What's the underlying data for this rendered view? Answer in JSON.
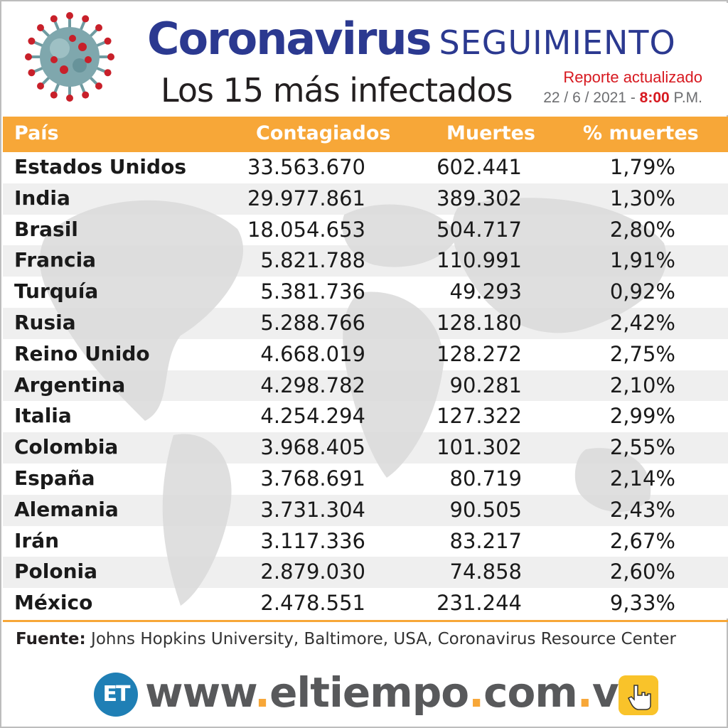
{
  "header": {
    "title_corona": "Coronavirus",
    "title_seguimiento": "SEGUIMIENTO",
    "subtitle": "Los 15 más infectados",
    "report_label": "Reporte actualizado",
    "report_date": "22 / 6 / 2021 -",
    "report_time": "8:00",
    "report_ampm": "P.M.",
    "icon": "coronavirus-icon"
  },
  "chart_data": {
    "type": "table",
    "columns": [
      "País",
      "Contagiados",
      "Muertes",
      "% muertes"
    ],
    "rows": [
      [
        "Estados Unidos",
        "33.563.670",
        "602.441",
        "1,79%"
      ],
      [
        "India",
        "29.977.861",
        "389.302",
        "1,30%"
      ],
      [
        "Brasil",
        "18.054.653",
        "504.717",
        "2,80%"
      ],
      [
        "Francia",
        "5.821.788",
        "110.991",
        "1,91%"
      ],
      [
        "Turquía",
        "5.381.736",
        "49.293",
        "0,92%"
      ],
      [
        "Rusia",
        "5.288.766",
        "128.180",
        "2,42%"
      ],
      [
        "Reino Unido",
        "4.668.019",
        "128.272",
        "2,75%"
      ],
      [
        "Argentina",
        "4.298.782",
        "90.281",
        "2,10%"
      ],
      [
        "Italia",
        "4.254.294",
        "127.322",
        "2,99%"
      ],
      [
        "Colombia",
        "3.968.405",
        "101.302",
        "2,55%"
      ],
      [
        "España",
        "3.768.691",
        "80.719",
        "2,14%"
      ],
      [
        "Alemania",
        "3.731.304",
        "90.505",
        "2,43%"
      ],
      [
        "Irán",
        "3.117.336",
        "83.217",
        "2,67%"
      ],
      [
        "Polonia",
        "2.879.030",
        "74.858",
        "2,60%"
      ],
      [
        "México",
        "2.478.551",
        "231.244",
        "9,33%"
      ]
    ]
  },
  "footer": {
    "source_label": "Fuente:",
    "source_text": " Johns Hopkins University, Baltimore, USA, Coronavirus Resource Center",
    "logo_text": "ET",
    "web_1": "www",
    "web_2": "eltiempo",
    "web_3": "com",
    "web_4": "ve",
    "web_dot": ".",
    "icon": "pointing-hand-icon"
  },
  "colors": {
    "title_blue": "#2b3990",
    "header_orange": "#f7a738",
    "report_red": "#d71920",
    "logo_blue": "#1f7fb5"
  }
}
